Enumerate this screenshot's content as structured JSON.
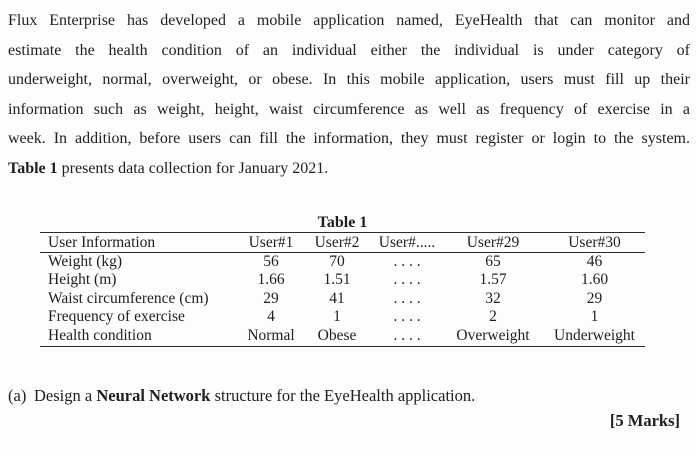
{
  "page": {
    "background": "#fdfdfd",
    "text_color": "#1f1f1f",
    "rule_color": "#2b2b2b"
  },
  "intro": {
    "lines": [
      "Flux Enterprise has developed a mobile application named, EyeHealth that can monitor and",
      "estimate the health condition of an individual either the individual is under category of",
      "underweight, normal, overweight, or obese. In this mobile application, users must fill up their",
      "information such as weight, height, waist circumference as well as frequency of exercise in a",
      "week. In addition, before users can fill the information, they must register or login to the system."
    ],
    "final_line": {
      "bold": "Table 1",
      "rest": " presents data collection for January 2021."
    }
  },
  "table": {
    "title": "Table 1",
    "headers": [
      "User Information",
      "User#1",
      "User#2",
      "User#.....",
      "User#29",
      "User#30"
    ],
    "rows": [
      [
        "Weight (kg)",
        "56",
        "70",
        ". . . .",
        "65",
        "46"
      ],
      [
        "Height (m)",
        "1.66",
        "1.51",
        ". . . .",
        "1.57",
        "1.60"
      ],
      [
        "Waist circumference (cm)",
        "29",
        "41",
        ". . . .",
        "32",
        "29"
      ],
      [
        "Frequency of exercise",
        "4",
        "1",
        ". . . .",
        "2",
        "1"
      ],
      [
        "Health condition",
        "Normal",
        "Obese",
        ". . . .",
        "Overweight",
        "Underweight"
      ]
    ]
  },
  "question": {
    "label": "(a)",
    "prefix": "Design a ",
    "bold": "Neural Network",
    "suffix": " structure for the EyeHealth application.",
    "marks": "[5 Marks]"
  }
}
